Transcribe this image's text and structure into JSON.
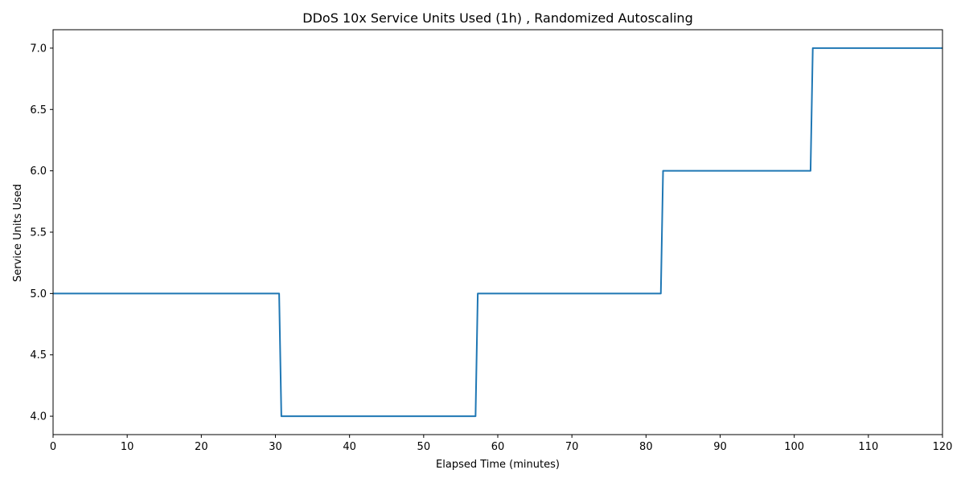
{
  "chart_data": {
    "type": "line",
    "title": "DDoS 10x Service Units Used (1h) , Randomized Autoscaling",
    "xlabel": "Elapsed Time (minutes)",
    "ylabel": "Service Units Used",
    "xlim": [
      0,
      120
    ],
    "ylim": [
      3.85,
      7.15
    ],
    "xticks": [
      0,
      10,
      20,
      30,
      40,
      50,
      60,
      70,
      80,
      90,
      100,
      110,
      120
    ],
    "yticks": [
      4.0,
      4.5,
      5.0,
      5.5,
      6.0,
      6.5,
      7.0
    ],
    "xtick_labels": [
      "0",
      "10",
      "20",
      "30",
      "40",
      "50",
      "60",
      "70",
      "80",
      "90",
      "100",
      "110",
      "120"
    ],
    "ytick_labels": [
      "4.0",
      "4.5",
      "5.0",
      "5.5",
      "6.0",
      "6.5",
      "7.0"
    ],
    "grid": false,
    "series": [
      {
        "color": "#1f77b4",
        "x": [
          0,
          30.5,
          30.8,
          57.0,
          57.3,
          82.0,
          82.3,
          102.2,
          102.5,
          120
        ],
        "y": [
          5,
          5,
          4,
          4,
          5,
          5,
          6,
          6,
          7,
          7
        ]
      }
    ]
  }
}
